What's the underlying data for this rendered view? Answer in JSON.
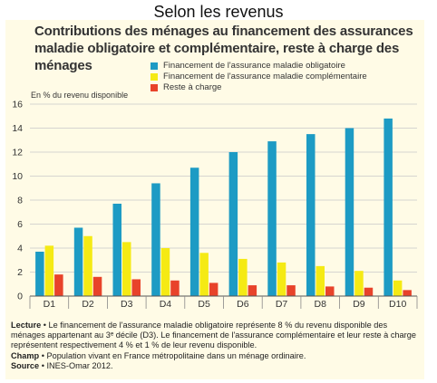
{
  "slide_title": "Selon les revenus",
  "chart_data": {
    "type": "bar",
    "title": "Contributions des ménages au financement des assurances maladie obligatoire et complémentaire, reste à charge des ménages",
    "ylabel": "En % du revenu disponible",
    "xlabel": "",
    "categories": [
      "D1",
      "D2",
      "D3",
      "D4",
      "D5",
      "D6",
      "D7",
      "D8",
      "D9",
      "D10"
    ],
    "ylim": [
      0,
      16
    ],
    "yticks": [
      0,
      2,
      4,
      6,
      8,
      10,
      12,
      14,
      16
    ],
    "grid": true,
    "legend_position": "top",
    "series": [
      {
        "name": "Financement de l'assurance maladie obligatoire",
        "color": "#1d9bc4",
        "values": [
          3.7,
          5.7,
          7.7,
          9.4,
          10.7,
          12.0,
          12.9,
          13.5,
          14.0,
          14.8
        ]
      },
      {
        "name": "Financement de l'assurance maladie complémentaire",
        "color": "#f5ea14",
        "values": [
          4.2,
          5.0,
          4.5,
          4.0,
          3.6,
          3.1,
          2.8,
          2.5,
          2.1,
          1.3
        ]
      },
      {
        "name": "Reste à charge",
        "color": "#e8432a",
        "values": [
          1.8,
          1.6,
          1.4,
          1.3,
          1.1,
          0.9,
          0.9,
          0.8,
          0.7,
          0.5
        ]
      }
    ]
  },
  "notes": {
    "lecture_kw": "Lecture",
    "lecture_text": " • Le financement de l'assurance maladie obligatoire représente 8 % du revenu disponible des ménages appartenant au 3ᵉ décile (D3). Le financement de l'assurance complémentaire et leur reste à charge représentent respectivement 4 % et 1 % de leur revenu disponible.",
    "champ_kw": "Champ",
    "champ_text": " • Population vivant en France métropolitaine dans un ménage ordinaire.",
    "source_kw": "Source",
    "source_text": " • INES-Omar 2012."
  }
}
